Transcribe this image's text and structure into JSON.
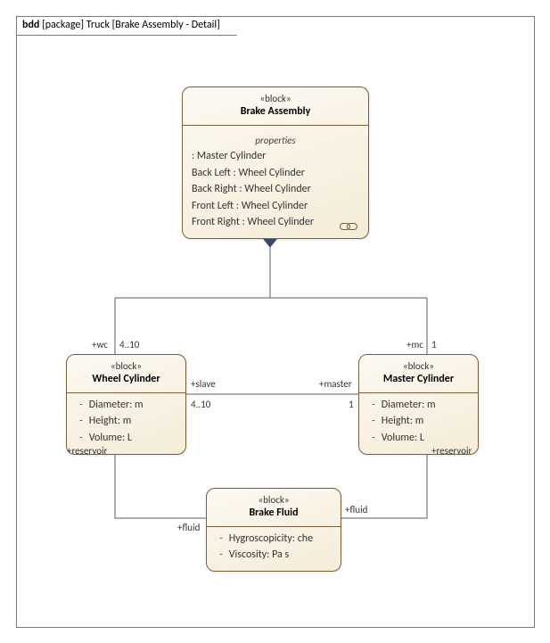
{
  "frame": {
    "tag": "bdd",
    "package": "[package]",
    "title": "Truck [Brake Assembly - Detail]"
  },
  "blocks": {
    "brakeAssembly": {
      "stereo": "«block»",
      "name": "Brake Assembly",
      "section": "properties",
      "props": [
        " : Master Cylinder",
        "Back Left : Wheel Cylinder",
        "Back Right : Wheel Cylinder",
        "Front Left : Wheel Cylinder",
        "Front Right : Wheel Cylinder"
      ]
    },
    "wheelCylinder": {
      "stereo": "«block»",
      "name": "Wheel Cylinder",
      "attrs": [
        {
          "vis": "-",
          "text": "Diameter: m"
        },
        {
          "vis": "-",
          "text": "Height: m"
        },
        {
          "vis": "-",
          "text": "Volume: L"
        }
      ]
    },
    "masterCylinder": {
      "stereo": "«block»",
      "name": "Master Cylinder",
      "attrs": [
        {
          "vis": "-",
          "text": "Diameter: m"
        },
        {
          "vis": "-",
          "text": "Height: m"
        },
        {
          "vis": "-",
          "text": "Volume: L"
        }
      ]
    },
    "brakeFluid": {
      "stereo": "«block»",
      "name": "Brake Fluid",
      "attrs": [
        {
          "vis": "-",
          "text": "Hygroscopicity: che"
        },
        {
          "vis": "-",
          "text": "Viscosity: Pa s"
        }
      ]
    }
  },
  "edges": {
    "compWC": {
      "role": "+wc",
      "mult": "4..10"
    },
    "compMC": {
      "role": "+mc",
      "mult": "1"
    },
    "assocWM": {
      "slave": {
        "role": "+slave",
        "mult": "4..10"
      },
      "master": {
        "role": "+master",
        "mult": "1"
      }
    },
    "wcFluid": {
      "role1": "+reservoir",
      "role2": "+fluid"
    },
    "mcFluid": {
      "role1": "+reservoir",
      "role2": "+fluid"
    }
  },
  "style": {
    "lineColor": "#5b5b6a",
    "diamondFill": "#3a4a6b"
  }
}
